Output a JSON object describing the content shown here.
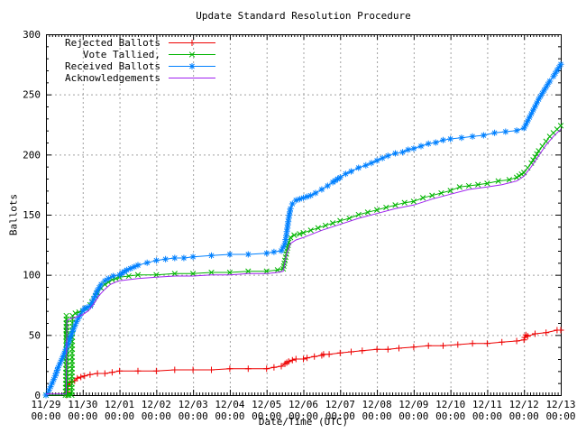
{
  "title": "Update Standard Resolution Procedure",
  "chart_data": {
    "type": "line",
    "title": "Update Standard Resolution Procedure",
    "xlabel": "Date/Time (UTC)",
    "ylabel": "Ballots",
    "ylim": [
      0,
      300
    ],
    "y_ticks": [
      0,
      50,
      100,
      150,
      200,
      250,
      300
    ],
    "y_minor_step": 10,
    "x_minor_per_day": 12,
    "grid": true,
    "grid_color": "#a0a0a0",
    "legend_position": "top-left",
    "x_ticks": [
      {
        "date": "11/29",
        "time": "00:00"
      },
      {
        "date": "11/30",
        "time": "00:00"
      },
      {
        "date": "12/01",
        "time": "00:00"
      },
      {
        "date": "12/02",
        "time": "00:00"
      },
      {
        "date": "12/03",
        "time": "00:00"
      },
      {
        "date": "12/04",
        "time": "00:00"
      },
      {
        "date": "12/05",
        "time": "00:00"
      },
      {
        "date": "12/06",
        "time": "00:00"
      },
      {
        "date": "12/07",
        "time": "00:00"
      },
      {
        "date": "12/08",
        "time": "00:00"
      },
      {
        "date": "12/09",
        "time": "00:00"
      },
      {
        "date": "12/10",
        "time": "00:00"
      },
      {
        "date": "12/11",
        "time": "00:00"
      },
      {
        "date": "12/12",
        "time": "00:00"
      },
      {
        "date": "12/13",
        "time": "00:00"
      }
    ],
    "x_unit": "days_since_11/29_00:00",
    "series": [
      {
        "name": "Rejected Ballots",
        "color": "#ee0000",
        "marker": "plus",
        "points": [
          [
            0,
            0
          ],
          [
            0.56,
            0
          ],
          [
            0.6,
            8
          ],
          [
            0.65,
            10
          ],
          [
            0.7,
            11
          ],
          [
            0.78,
            12
          ],
          [
            0.85,
            14
          ],
          [
            0.95,
            15
          ],
          [
            1.05,
            16
          ],
          [
            1.2,
            17
          ],
          [
            1.4,
            18
          ],
          [
            1.6,
            18
          ],
          [
            1.8,
            19
          ],
          [
            2.0,
            20
          ],
          [
            2.5,
            20
          ],
          [
            3.0,
            20
          ],
          [
            3.5,
            21
          ],
          [
            4.0,
            21
          ],
          [
            4.5,
            21
          ],
          [
            5.0,
            22
          ],
          [
            5.5,
            22
          ],
          [
            6.0,
            22
          ],
          [
            6.2,
            23
          ],
          [
            6.4,
            24
          ],
          [
            6.5,
            26
          ],
          [
            6.55,
            27
          ],
          [
            6.6,
            28
          ],
          [
            6.7,
            29
          ],
          [
            6.8,
            30
          ],
          [
            7.0,
            30
          ],
          [
            7.1,
            31
          ],
          [
            7.3,
            32
          ],
          [
            7.5,
            33
          ],
          [
            7.55,
            34
          ],
          [
            7.7,
            34
          ],
          [
            8.0,
            35
          ],
          [
            8.3,
            36
          ],
          [
            8.6,
            37
          ],
          [
            9.0,
            38
          ],
          [
            9.3,
            38
          ],
          [
            9.6,
            39
          ],
          [
            10.0,
            40
          ],
          [
            10.4,
            41
          ],
          [
            10.8,
            41
          ],
          [
            11.2,
            42
          ],
          [
            11.6,
            43
          ],
          [
            12.0,
            43
          ],
          [
            12.4,
            44
          ],
          [
            12.8,
            45
          ],
          [
            13.0,
            46
          ],
          [
            13.02,
            48
          ],
          [
            13.05,
            50
          ],
          [
            13.1,
            49
          ],
          [
            13.3,
            51
          ],
          [
            13.6,
            52
          ],
          [
            13.9,
            54
          ],
          [
            14.0,
            54
          ]
        ]
      },
      {
        "name": "Vote Tallied,",
        "color": "#00b400",
        "marker": "cross",
        "points": [
          [
            0,
            0
          ],
          [
            0.53,
            0
          ],
          [
            0.545,
            22
          ],
          [
            0.55,
            45
          ],
          [
            0.555,
            66
          ],
          [
            0.565,
            40
          ],
          [
            0.575,
            12
          ],
          [
            0.58,
            0
          ],
          [
            0.62,
            0
          ],
          [
            0.7,
            0
          ],
          [
            0.71,
            25
          ],
          [
            0.715,
            48
          ],
          [
            0.72,
            66
          ],
          [
            0.8,
            68
          ],
          [
            0.9,
            69
          ],
          [
            1.0,
            70
          ],
          [
            1.1,
            72
          ],
          [
            1.2,
            75
          ],
          [
            1.3,
            80
          ],
          [
            1.4,
            85
          ],
          [
            1.5,
            89
          ],
          [
            1.6,
            92
          ],
          [
            1.7,
            94
          ],
          [
            1.8,
            96
          ],
          [
            1.9,
            97
          ],
          [
            2.0,
            98
          ],
          [
            2.25,
            99
          ],
          [
            2.5,
            100
          ],
          [
            3.0,
            100
          ],
          [
            3.5,
            101
          ],
          [
            4.0,
            101
          ],
          [
            4.5,
            102
          ],
          [
            5.0,
            102
          ],
          [
            5.5,
            103
          ],
          [
            6.0,
            103
          ],
          [
            6.3,
            104
          ],
          [
            6.45,
            105
          ],
          [
            6.5,
            112
          ],
          [
            6.55,
            120
          ],
          [
            6.6,
            127
          ],
          [
            6.65,
            131
          ],
          [
            6.75,
            133
          ],
          [
            6.9,
            134
          ],
          [
            7.0,
            135
          ],
          [
            7.2,
            137
          ],
          [
            7.4,
            139
          ],
          [
            7.6,
            141
          ],
          [
            7.8,
            143
          ],
          [
            8.0,
            145
          ],
          [
            8.25,
            147
          ],
          [
            8.5,
            150
          ],
          [
            8.75,
            152
          ],
          [
            9.0,
            154
          ],
          [
            9.25,
            156
          ],
          [
            9.5,
            158
          ],
          [
            9.75,
            160
          ],
          [
            10.0,
            161
          ],
          [
            10.25,
            164
          ],
          [
            10.5,
            166
          ],
          [
            10.75,
            168
          ],
          [
            11.0,
            170
          ],
          [
            11.25,
            173
          ],
          [
            11.5,
            174
          ],
          [
            11.75,
            175
          ],
          [
            12.0,
            176
          ],
          [
            12.3,
            178
          ],
          [
            12.6,
            179
          ],
          [
            12.8,
            181
          ],
          [
            13.0,
            185
          ],
          [
            13.1,
            189
          ],
          [
            13.2,
            193
          ],
          [
            13.3,
            198
          ],
          [
            13.4,
            203
          ],
          [
            13.5,
            207
          ],
          [
            13.6,
            211
          ],
          [
            13.7,
            215
          ],
          [
            13.8,
            218
          ],
          [
            13.9,
            221
          ],
          [
            14.0,
            224
          ]
        ]
      },
      {
        "name": "Received Ballots",
        "color": "#0080ff",
        "marker": "star",
        "points": [
          [
            0,
            0
          ],
          [
            0.08,
            4
          ],
          [
            0.17,
            10
          ],
          [
            0.25,
            16
          ],
          [
            0.33,
            23
          ],
          [
            0.42,
            29
          ],
          [
            0.5,
            35
          ],
          [
            0.58,
            41
          ],
          [
            0.66,
            48
          ],
          [
            0.75,
            55
          ],
          [
            0.83,
            61
          ],
          [
            0.92,
            66
          ],
          [
            1.0,
            70
          ],
          [
            1.05,
            72
          ],
          [
            1.12,
            73
          ],
          [
            1.21,
            74
          ],
          [
            1.3,
            80
          ],
          [
            1.4,
            87
          ],
          [
            1.5,
            92
          ],
          [
            1.6,
            95
          ],
          [
            1.7,
            97
          ],
          [
            1.83,
            99
          ],
          [
            2.0,
            100
          ],
          [
            2.2,
            104
          ],
          [
            2.5,
            108
          ],
          [
            2.75,
            110
          ],
          [
            3.0,
            112
          ],
          [
            3.25,
            113
          ],
          [
            3.5,
            114
          ],
          [
            3.75,
            114
          ],
          [
            4.0,
            115
          ],
          [
            4.5,
            116
          ],
          [
            5.0,
            117
          ],
          [
            5.5,
            117
          ],
          [
            6.0,
            118
          ],
          [
            6.2,
            119
          ],
          [
            6.4,
            120
          ],
          [
            6.5,
            126
          ],
          [
            6.55,
            136
          ],
          [
            6.6,
            147
          ],
          [
            6.65,
            155
          ],
          [
            6.7,
            159
          ],
          [
            6.8,
            162
          ],
          [
            6.9,
            163
          ],
          [
            7.0,
            164
          ],
          [
            7.1,
            165
          ],
          [
            7.2,
            166
          ],
          [
            7.33,
            168
          ],
          [
            7.5,
            171
          ],
          [
            7.66,
            174
          ],
          [
            7.8,
            177
          ],
          [
            8.0,
            181
          ],
          [
            8.15,
            184
          ],
          [
            8.3,
            186
          ],
          [
            8.5,
            189
          ],
          [
            8.7,
            191
          ],
          [
            8.85,
            193
          ],
          [
            9.0,
            195
          ],
          [
            9.15,
            197
          ],
          [
            9.3,
            199
          ],
          [
            9.5,
            201
          ],
          [
            9.7,
            202
          ],
          [
            9.85,
            204
          ],
          [
            10.0,
            205
          ],
          [
            10.2,
            207
          ],
          [
            10.4,
            209
          ],
          [
            10.6,
            210
          ],
          [
            10.8,
            212
          ],
          [
            11.0,
            213
          ],
          [
            11.3,
            214
          ],
          [
            11.6,
            215
          ],
          [
            11.9,
            216
          ],
          [
            12.2,
            218
          ],
          [
            12.5,
            219
          ],
          [
            12.8,
            220
          ],
          [
            13.0,
            222
          ],
          [
            13.1,
            228
          ],
          [
            13.2,
            234
          ],
          [
            13.3,
            240
          ],
          [
            13.4,
            246
          ],
          [
            13.5,
            251
          ],
          [
            13.6,
            256
          ],
          [
            13.7,
            261
          ],
          [
            13.8,
            265
          ],
          [
            13.9,
            270
          ],
          [
            14.0,
            275
          ]
        ]
      },
      {
        "name": "Acknowledgements",
        "color": "#a020f0",
        "marker": "none",
        "points": [
          [
            0,
            1
          ],
          [
            0.55,
            1
          ],
          [
            0.56,
            30
          ],
          [
            0.57,
            62
          ],
          [
            0.7,
            64
          ],
          [
            0.85,
            65
          ],
          [
            1.0,
            67
          ],
          [
            1.15,
            70
          ],
          [
            1.3,
            76
          ],
          [
            1.45,
            83
          ],
          [
            1.6,
            88
          ],
          [
            1.75,
            92
          ],
          [
            1.9,
            94
          ],
          [
            2.0,
            95
          ],
          [
            2.5,
            97
          ],
          [
            3.0,
            98
          ],
          [
            3.5,
            99
          ],
          [
            4.0,
            99
          ],
          [
            4.5,
            100
          ],
          [
            5.0,
            100
          ],
          [
            5.5,
            101
          ],
          [
            6.0,
            101
          ],
          [
            6.3,
            102
          ],
          [
            6.45,
            103
          ],
          [
            6.55,
            118
          ],
          [
            6.65,
            126
          ],
          [
            6.8,
            129
          ],
          [
            7.0,
            131
          ],
          [
            7.5,
            137
          ],
          [
            8.0,
            142
          ],
          [
            8.5,
            147
          ],
          [
            9.0,
            151
          ],
          [
            9.5,
            155
          ],
          [
            10.0,
            158
          ],
          [
            10.5,
            163
          ],
          [
            11.0,
            167
          ],
          [
            11.5,
            171
          ],
          [
            12.0,
            173
          ],
          [
            12.4,
            175
          ],
          [
            12.8,
            178
          ],
          [
            13.0,
            182
          ],
          [
            13.2,
            190
          ],
          [
            13.4,
            199
          ],
          [
            13.6,
            208
          ],
          [
            13.8,
            215
          ],
          [
            14.0,
            221
          ]
        ]
      }
    ]
  }
}
